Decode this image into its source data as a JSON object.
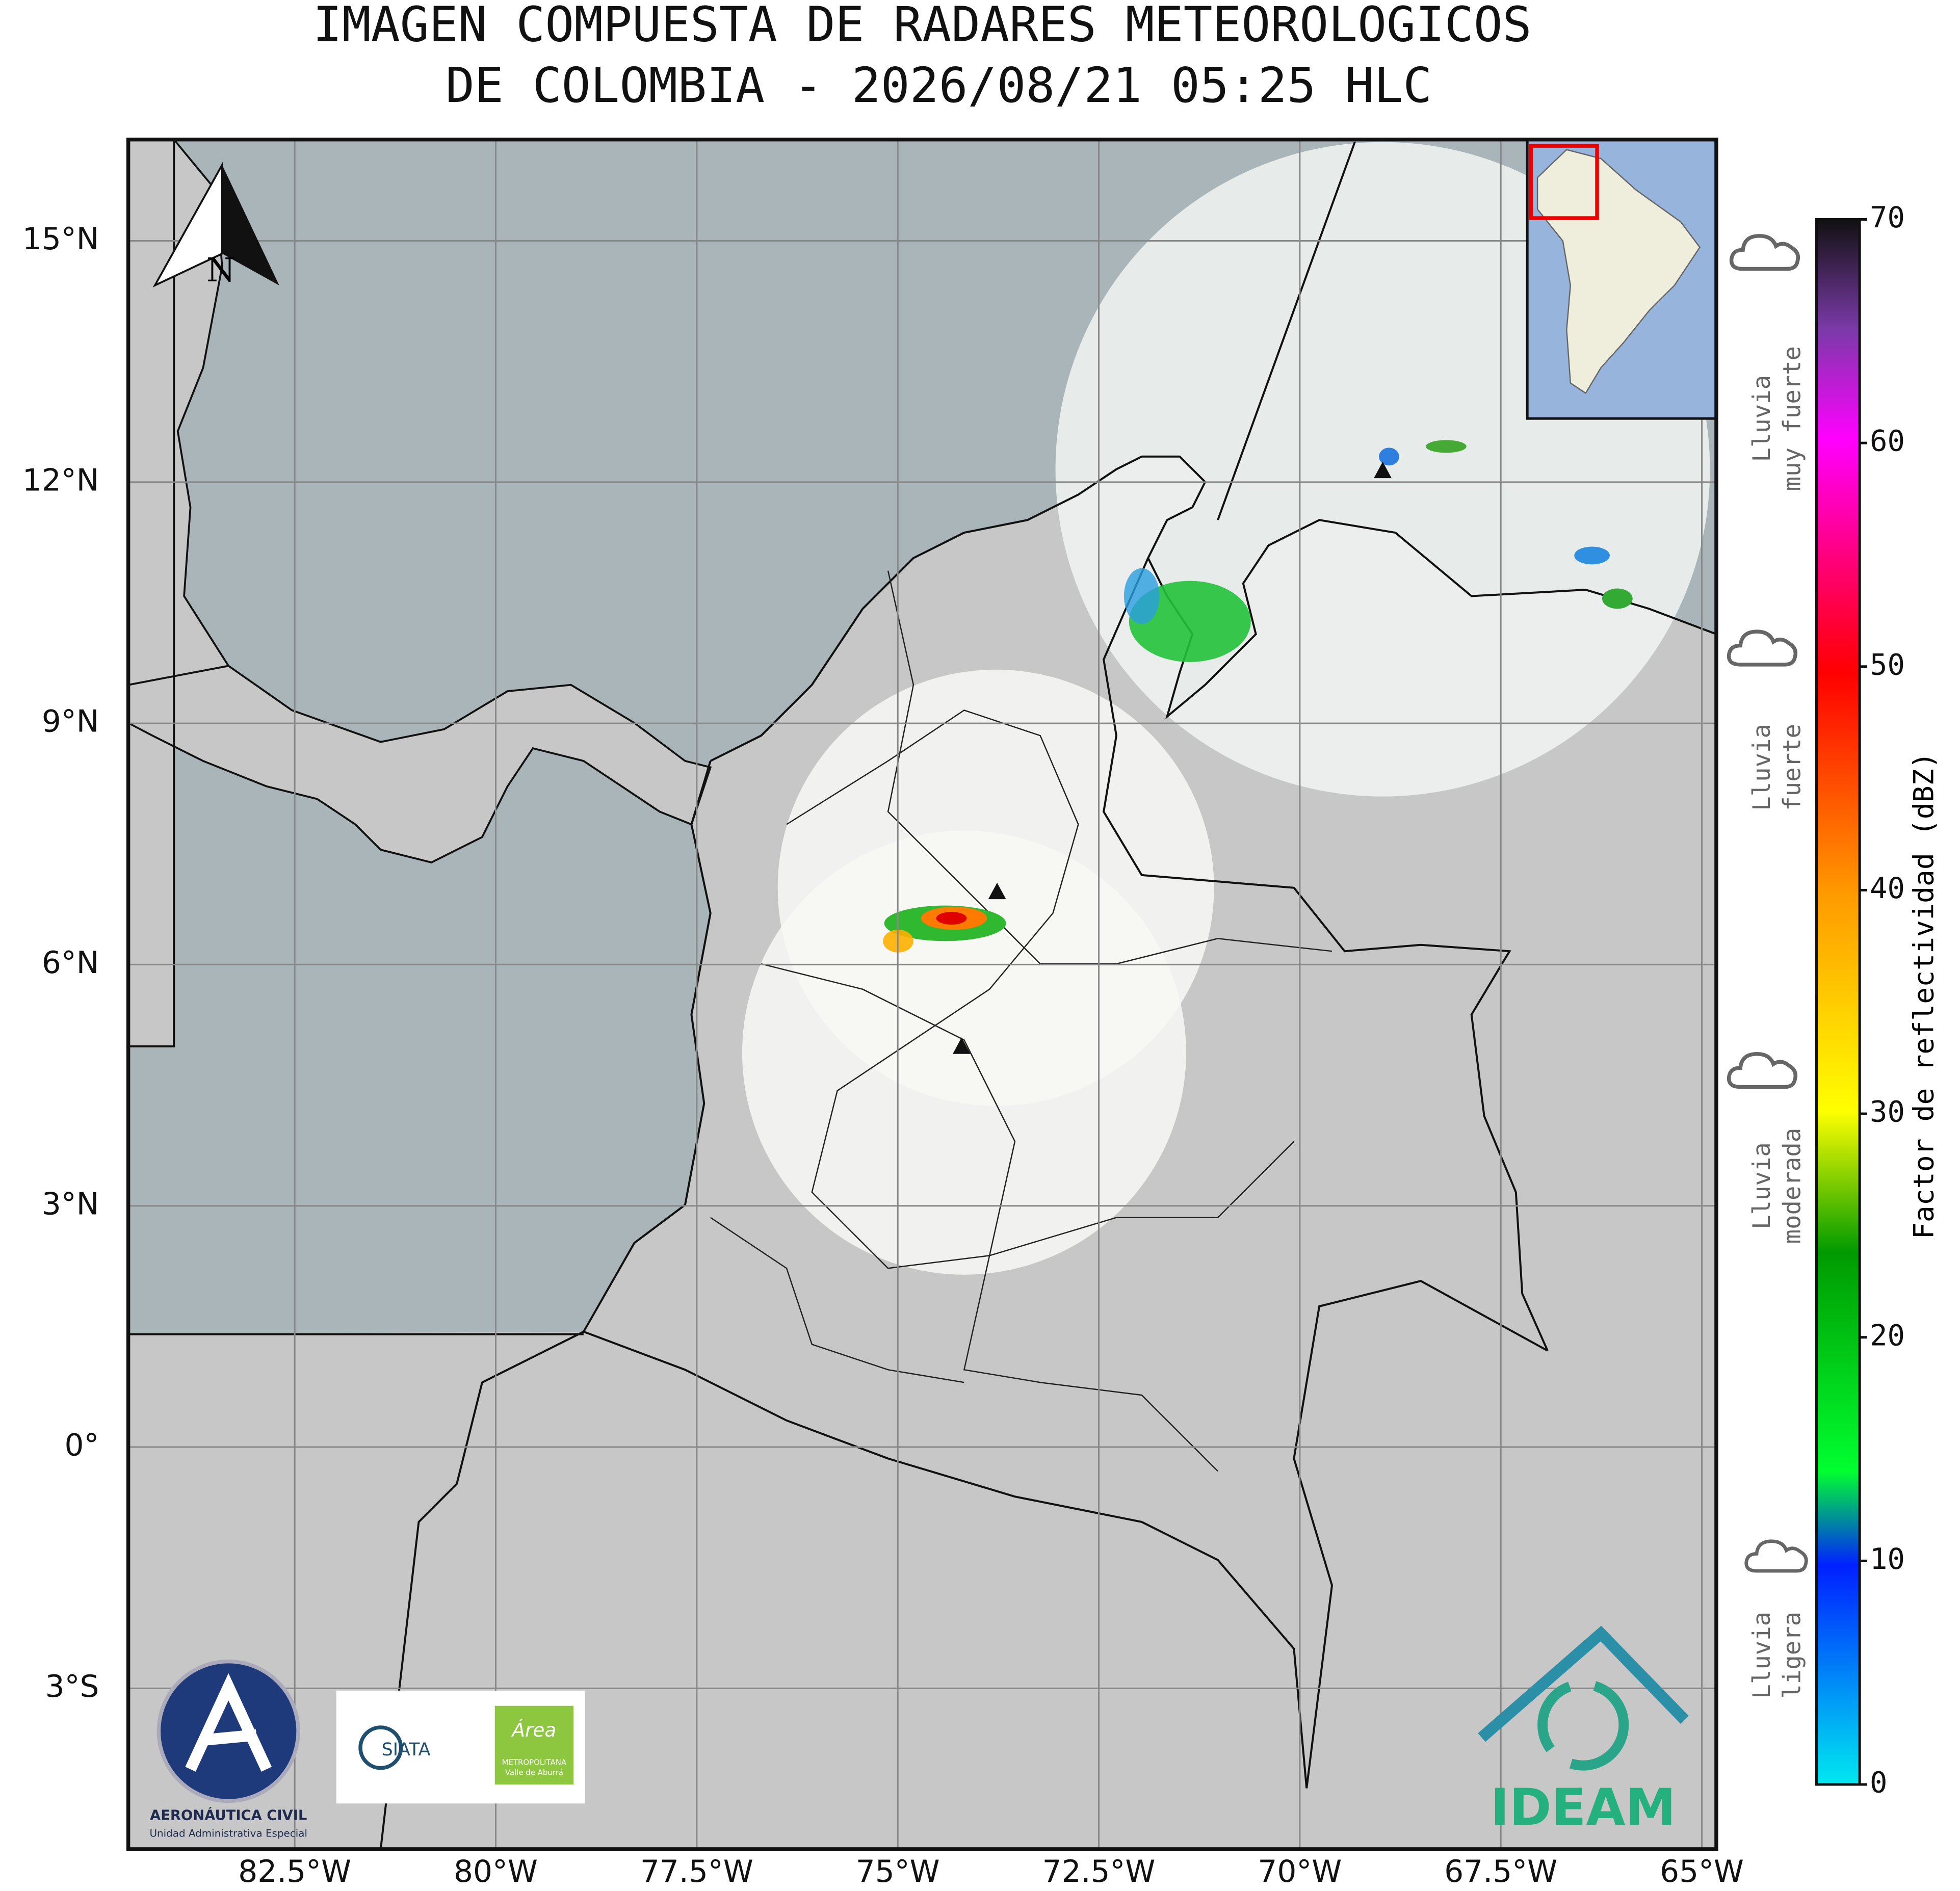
{
  "title": [
    "IMAGEN COMPUESTA DE RADARES METEOROLOGICOS",
    "DE COLOMBIA - 2026/08/21 05:25 HLC"
  ],
  "map": {
    "xlim": [
      -84.57,
      -64.82
    ],
    "ylim": [
      -5.0,
      16.26
    ],
    "xticks": [
      {
        "value": -82.5,
        "label": "82.5°W"
      },
      {
        "value": -80,
        "label": "80°W"
      },
      {
        "value": -77.5,
        "label": "77.5°W"
      },
      {
        "value": -75,
        "label": "75°W"
      },
      {
        "value": -72.5,
        "label": "72.5°W"
      },
      {
        "value": -70,
        "label": "70°W"
      },
      {
        "value": -67.5,
        "label": "67.5°W"
      },
      {
        "value": -65,
        "label": "65°W"
      }
    ],
    "yticks": [
      {
        "value": 15,
        "label": "15°N"
      },
      {
        "value": 12,
        "label": "12°N"
      },
      {
        "value": 9,
        "label": "9°N"
      },
      {
        "value": 6,
        "label": "6°N"
      },
      {
        "value": 3,
        "label": "3°N"
      },
      {
        "value": 0,
        "label": "0°"
      },
      {
        "value": -3,
        "label": "3°S"
      }
    ],
    "grid": true,
    "north_label": "N"
  },
  "colorbar": {
    "label": "Factor de reflectividad (dBZ)",
    "range": [
      0,
      70
    ],
    "ticks": [
      0,
      10,
      20,
      30,
      40,
      50,
      60,
      70
    ]
  },
  "rain_levels": [
    [
      "Lluvia",
      "ligera"
    ],
    [
      "Lluvia",
      "moderada"
    ],
    [
      "Lluvia",
      "fuerte"
    ],
    [
      "Lluvia",
      "muy fuerte"
    ]
  ],
  "logos": {
    "aerocivil": [
      "AERONÁUTICA CIVIL",
      "Unidad Administrativa Especial"
    ],
    "siata": "SIATA",
    "area": [
      "Área",
      "METROPOLITANA",
      "Valle de Aburrá"
    ],
    "ideam": "IDEAM"
  }
}
